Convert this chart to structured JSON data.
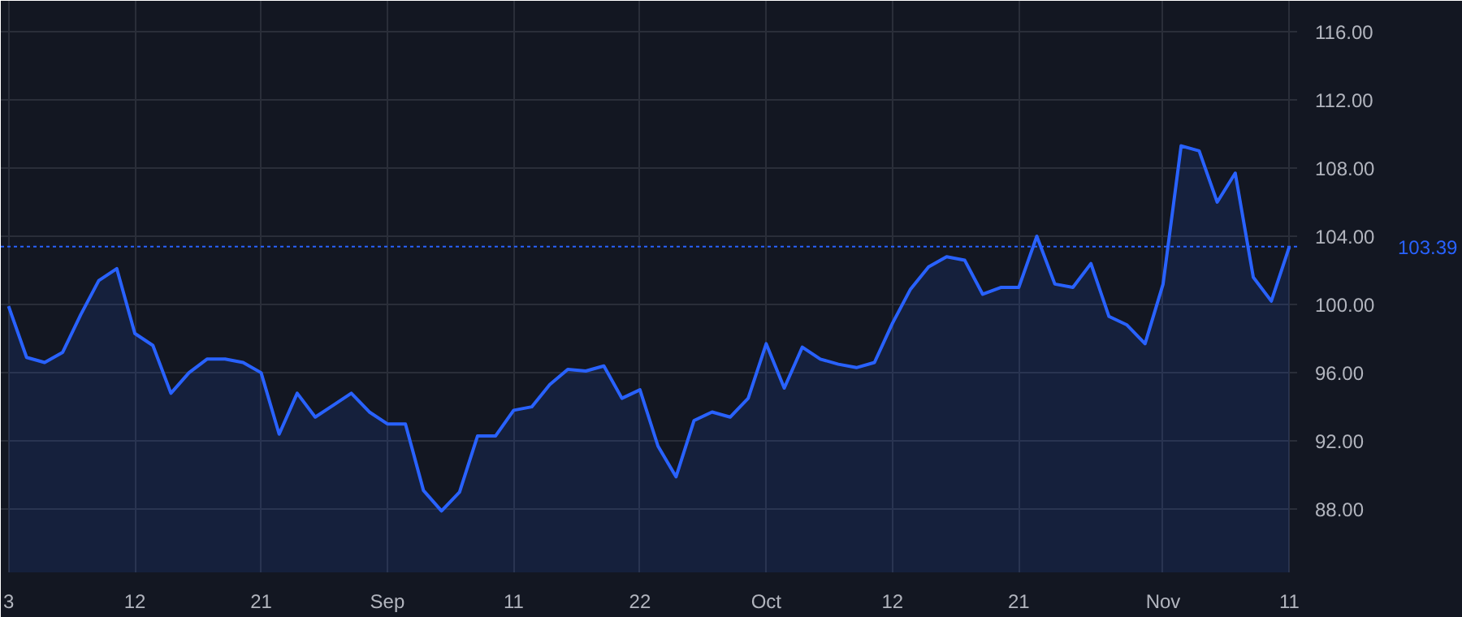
{
  "chart_data": {
    "type": "area",
    "categories": [
      "3",
      null,
      null,
      null,
      null,
      null,
      null,
      "12",
      null,
      null,
      null,
      null,
      null,
      null,
      "21",
      null,
      null,
      null,
      null,
      null,
      null,
      "Sep",
      null,
      null,
      null,
      null,
      null,
      null,
      "11",
      null,
      null,
      null,
      null,
      null,
      null,
      "22",
      null,
      null,
      null,
      null,
      null,
      null,
      "Oct",
      null,
      null,
      null,
      null,
      null,
      null,
      "12",
      null,
      null,
      null,
      null,
      null,
      null,
      "21",
      null,
      null,
      null,
      null,
      null,
      null,
      null,
      "Nov",
      null,
      null,
      null,
      null,
      null,
      null,
      "11"
    ],
    "series": [
      {
        "color": "#2962ff",
        "values": [
          99.9,
          96.9,
          96.6,
          97.2,
          99.4,
          101.4,
          102.1,
          98.3,
          97.6,
          94.8,
          96.0,
          96.8,
          96.8,
          96.6,
          96.0,
          92.4,
          94.8,
          93.4,
          94.1,
          94.8,
          93.7,
          93.0,
          93.0,
          89.1,
          87.9,
          89.0,
          92.3,
          92.3,
          93.8,
          94.0,
          95.3,
          96.2,
          96.1,
          96.4,
          94.5,
          95.0,
          91.7,
          89.9,
          93.2,
          93.7,
          93.4,
          94.5,
          97.7,
          95.1,
          97.5,
          96.8,
          96.5,
          96.3,
          96.6,
          98.9,
          100.9,
          102.2,
          102.8,
          102.6,
          100.6,
          101.0,
          101.0,
          104.0,
          101.2,
          101.0,
          102.4,
          99.3,
          98.8,
          97.7,
          101.2,
          109.3,
          109.0,
          106.0,
          107.7,
          101.6,
          100.2,
          103.39
        ]
      }
    ],
    "ylim": [
      84.3,
      117.8
    ],
    "yticks": [
      {
        "value": 88,
        "label": "88.00"
      },
      {
        "value": 92,
        "label": "92.00"
      },
      {
        "value": 96,
        "label": "96.00"
      },
      {
        "value": 100,
        "label": "100.00"
      },
      {
        "value": 104,
        "label": "104.00"
      },
      {
        "value": 108,
        "label": "108.00"
      },
      {
        "value": 112,
        "label": "112.00"
      },
      {
        "value": 116,
        "label": "116.00"
      }
    ],
    "ref_lines": [
      {
        "axis": "y",
        "value": 103.39,
        "label": "103.39",
        "color": "#2962ff",
        "line_style": "dotted"
      }
    ],
    "grid": true
  }
}
